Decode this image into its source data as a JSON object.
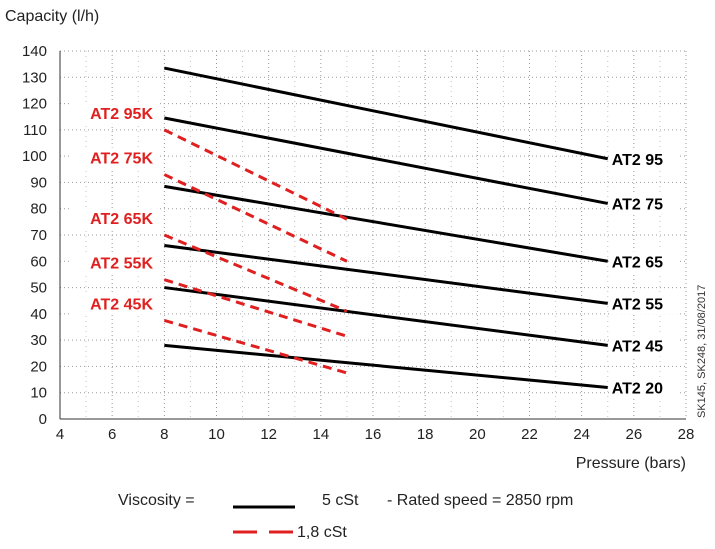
{
  "chart_data": {
    "type": "line",
    "ylabel": "Capacity (l/h)",
    "xlabel": "Pressure (bars)",
    "xlim": [
      4,
      28
    ],
    "ylim": [
      0,
      140
    ],
    "x_ticks": [
      4,
      6,
      8,
      10,
      12,
      14,
      16,
      18,
      20,
      22,
      24,
      26,
      28
    ],
    "y_ticks": [
      0,
      10,
      20,
      30,
      40,
      50,
      60,
      70,
      80,
      90,
      100,
      110,
      120,
      130,
      140
    ],
    "grid": true,
    "series": [
      {
        "name": "AT2 95",
        "style": "solid",
        "color": "#000000",
        "x": [
          8,
          25
        ],
        "y": [
          133.5,
          99
        ]
      },
      {
        "name": "AT2 75",
        "style": "solid",
        "color": "#000000",
        "x": [
          8,
          25
        ],
        "y": [
          114.5,
          82
        ]
      },
      {
        "name": "AT2 65",
        "style": "solid",
        "color": "#000000",
        "x": [
          8,
          25
        ],
        "y": [
          88.5,
          60
        ]
      },
      {
        "name": "AT2 55",
        "style": "solid",
        "color": "#000000",
        "x": [
          8,
          25
        ],
        "y": [
          66,
          44
        ]
      },
      {
        "name": "AT2 45",
        "style": "solid",
        "color": "#000000",
        "x": [
          8,
          25
        ],
        "y": [
          50,
          28
        ]
      },
      {
        "name": "AT2 20",
        "style": "solid",
        "color": "#000000",
        "x": [
          8,
          25
        ],
        "y": [
          28,
          12
        ]
      },
      {
        "name": "AT2 95K",
        "style": "dashed",
        "color": "#e02020",
        "x": [
          8,
          15
        ],
        "y": [
          110,
          76
        ]
      },
      {
        "name": "AT2 75K",
        "style": "dashed",
        "color": "#e02020",
        "x": [
          8,
          15
        ],
        "y": [
          93,
          60
        ]
      },
      {
        "name": "AT2 65K",
        "style": "dashed",
        "color": "#e02020",
        "x": [
          8,
          15
        ],
        "y": [
          70,
          41
        ]
      },
      {
        "name": "AT2 55K",
        "style": "dashed",
        "color": "#e02020",
        "x": [
          8,
          15
        ],
        "y": [
          53,
          31.5
        ]
      },
      {
        "name": "AT2 45K",
        "style": "dashed",
        "color": "#e02020",
        "x": [
          8,
          15
        ],
        "y": [
          37.5,
          17.5
        ]
      }
    ],
    "legend": {
      "label": "Viscosity =",
      "entries": [
        {
          "style": "solid",
          "color": "#000000",
          "text": "5 cSt"
        },
        {
          "style": "dashed",
          "color": "#e02020",
          "text": "1,8 cSt"
        }
      ],
      "note": "- Rated speed = 2850 rpm"
    },
    "side_note": "SK145, SK248, 31/08/2017"
  }
}
